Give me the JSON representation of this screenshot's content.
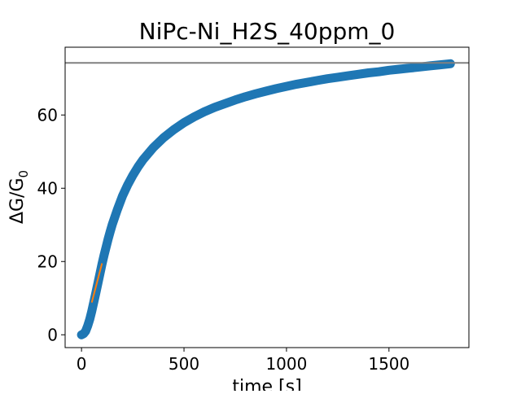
{
  "chart_data": {
    "type": "line",
    "title": "NiPc-Ni_H2S_40ppm_0",
    "xlabel": "time [s]",
    "ylabel": "ΔG/G",
    "ylabel_subscript": "0",
    "xlim": [
      -80,
      1890
    ],
    "ylim": [
      -3.5,
      78.5
    ],
    "xticks": [
      0,
      500,
      1000,
      1500
    ],
    "yticks": [
      0,
      20,
      40,
      60
    ],
    "grid": false,
    "legend": "none",
    "series": [
      {
        "color": "#1f77b4",
        "marker": "circle",
        "x": [
          0,
          10,
          20,
          30,
          40,
          50,
          60,
          70,
          80,
          90,
          100,
          110,
          120,
          130,
          140,
          150,
          175,
          200,
          225,
          250,
          275,
          300,
          350,
          400,
          450,
          500,
          550,
          600,
          650,
          700,
          750,
          800,
          850,
          900,
          950,
          1000,
          1050,
          1100,
          1150,
          1200,
          1250,
          1300,
          1350,
          1400,
          1450,
          1500,
          1550,
          1600,
          1650,
          1700,
          1750,
          1800
        ],
        "y": [
          0.0,
          0.3,
          1.0,
          2.4,
          4.2,
          6.4,
          8.9,
          11.5,
          14.1,
          16.7,
          19.3,
          21.7,
          24.0,
          26.2,
          28.2,
          30.1,
          34.2,
          37.9,
          40.9,
          43.5,
          45.8,
          47.8,
          51.1,
          53.8,
          56.0,
          57.9,
          59.5,
          60.9,
          62.1,
          63.1,
          64.1,
          65.0,
          65.8,
          66.5,
          67.2,
          67.8,
          68.4,
          68.9,
          69.4,
          69.9,
          70.3,
          70.7,
          71.1,
          71.5,
          71.8,
          72.2,
          72.5,
          72.8,
          73.1,
          73.4,
          73.7,
          74.0
        ]
      },
      {
        "color": "#ff7f0e",
        "marker": "none",
        "x": [
          50,
          100
        ],
        "y": [
          8.8,
          19.5
        ]
      },
      {
        "color": "#808080",
        "marker": "none",
        "x": [
          -80,
          1890
        ],
        "y": [
          74.2,
          74.2
        ]
      }
    ]
  }
}
